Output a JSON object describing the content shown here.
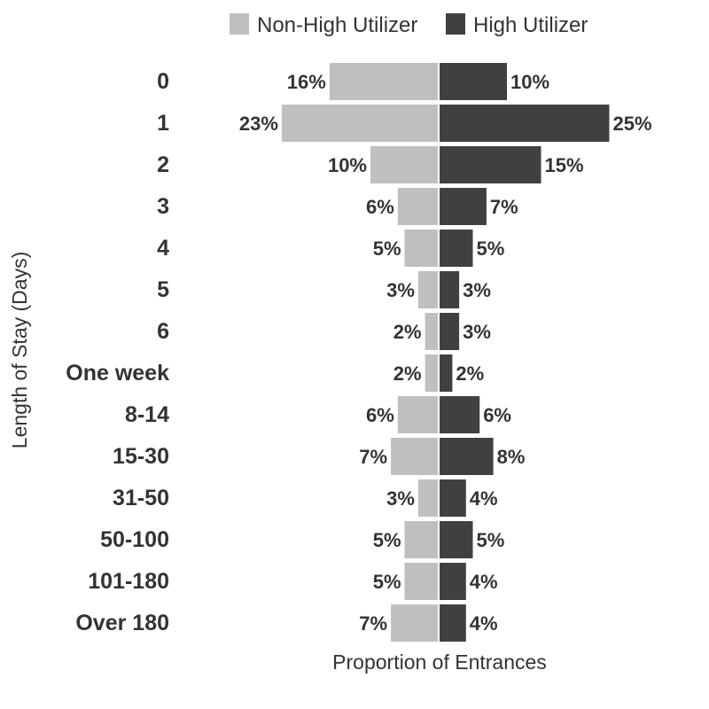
{
  "chart_data": {
    "type": "bar",
    "orientation": "horizontal-diverging",
    "categories": [
      "0",
      "1",
      "2",
      "3",
      "4",
      "5",
      "6",
      "One week",
      "8-14",
      "15-30",
      "31-50",
      "50-100",
      "101-180",
      "Over 180"
    ],
    "series": [
      {
        "name": "Non-High Utilizer",
        "color": "#bfbfbf",
        "side": "left",
        "values": [
          16,
          23,
          10,
          6,
          5,
          3,
          2,
          2,
          6,
          7,
          3,
          5,
          5,
          7
        ]
      },
      {
        "name": "High Utilizer",
        "color": "#404040",
        "side": "right",
        "values": [
          10,
          25,
          15,
          7,
          5,
          3,
          3,
          2,
          6,
          8,
          4,
          5,
          4,
          4
        ]
      }
    ],
    "value_suffix": "%",
    "xlabel": "Proportion of Entrances",
    "ylabel": "Length of Stay (Days)",
    "legend_position": "top",
    "grid": false
  }
}
